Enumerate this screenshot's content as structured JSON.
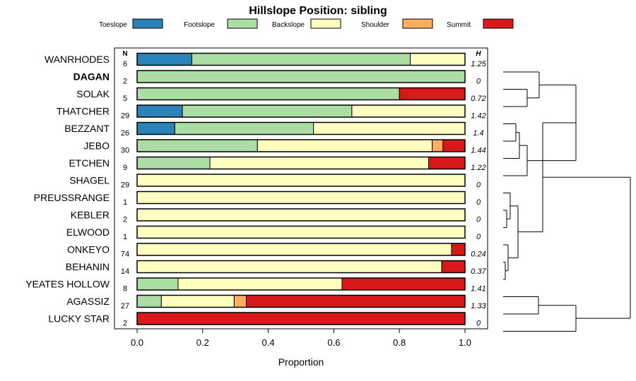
{
  "chart_data": {
    "type": "bar",
    "stacked": "proportion",
    "title": "Hillslope Position: sibling",
    "xlabel": "Proportion",
    "xlim": [
      0,
      1
    ],
    "xticks": [
      "0.0",
      "0.2",
      "0.4",
      "0.6",
      "0.8",
      "1.0"
    ],
    "n_header": "N",
    "h_header": "H",
    "legend": [
      {
        "name": "Toeslope",
        "color": "#2b83ba"
      },
      {
        "name": "Footslope",
        "color": "#abdda4"
      },
      {
        "name": "Backslope",
        "color": "#ffffbf"
      },
      {
        "name": "Shoulder",
        "color": "#fdae61"
      },
      {
        "name": "Summit",
        "color": "#d7191c"
      }
    ],
    "rows": [
      {
        "name": "WANRHODES",
        "bold": false,
        "n": "6",
        "h": "1.25",
        "values": [
          0.167,
          0.666,
          0.167,
          0,
          0
        ]
      },
      {
        "name": "DAGAN",
        "bold": true,
        "n": "2",
        "h": "0",
        "values": [
          0,
          1.0,
          0,
          0,
          0
        ]
      },
      {
        "name": "SOLAK",
        "bold": false,
        "n": "5",
        "h": "0.72",
        "values": [
          0,
          0.8,
          0,
          0,
          0.2
        ]
      },
      {
        "name": "THATCHER",
        "bold": false,
        "n": "29",
        "h": "1.42",
        "values": [
          0.138,
          0.517,
          0.345,
          0,
          0
        ]
      },
      {
        "name": "BEZZANT",
        "bold": false,
        "n": "26",
        "h": "1.4",
        "values": [
          0.115,
          0.423,
          0.462,
          0,
          0
        ]
      },
      {
        "name": "JEBO",
        "bold": false,
        "n": "30",
        "h": "1.44",
        "values": [
          0,
          0.367,
          0.533,
          0.033,
          0.067
        ]
      },
      {
        "name": "ETCHEN",
        "bold": false,
        "n": "9",
        "h": "1.22",
        "values": [
          0,
          0.222,
          0.667,
          0,
          0.111
        ]
      },
      {
        "name": "SHAGEL",
        "bold": false,
        "n": "29",
        "h": "0",
        "values": [
          0,
          0,
          1.0,
          0,
          0
        ]
      },
      {
        "name": "PREUSSRANGE",
        "bold": false,
        "n": "1",
        "h": "0",
        "values": [
          0,
          0,
          1.0,
          0,
          0
        ]
      },
      {
        "name": "KEBLER",
        "bold": false,
        "n": "2",
        "h": "0",
        "values": [
          0,
          0,
          1.0,
          0,
          0
        ]
      },
      {
        "name": "ELWOOD",
        "bold": false,
        "n": "1",
        "h": "0",
        "values": [
          0,
          0,
          1.0,
          0,
          0
        ]
      },
      {
        "name": "ONKEYO",
        "bold": false,
        "n": "74",
        "h": "0.24",
        "values": [
          0,
          0,
          0.959,
          0,
          0.041
        ]
      },
      {
        "name": "BEHANIN",
        "bold": false,
        "n": "14",
        "h": "0.37",
        "values": [
          0,
          0,
          0.929,
          0,
          0.071
        ]
      },
      {
        "name": "YEATES HOLLOW",
        "bold": false,
        "n": "8",
        "h": "1.41",
        "values": [
          0,
          0.125,
          0.5,
          0,
          0.375
        ]
      },
      {
        "name": "AGASSIZ",
        "bold": false,
        "n": "27",
        "h": "1.33",
        "values": [
          0,
          0.074,
          0.222,
          0.037,
          0.667
        ]
      },
      {
        "name": "LUCKY STAR",
        "bold": false,
        "n": "2",
        "h": "0",
        "values": [
          0,
          0,
          0,
          0,
          1.0
        ]
      }
    ]
  }
}
